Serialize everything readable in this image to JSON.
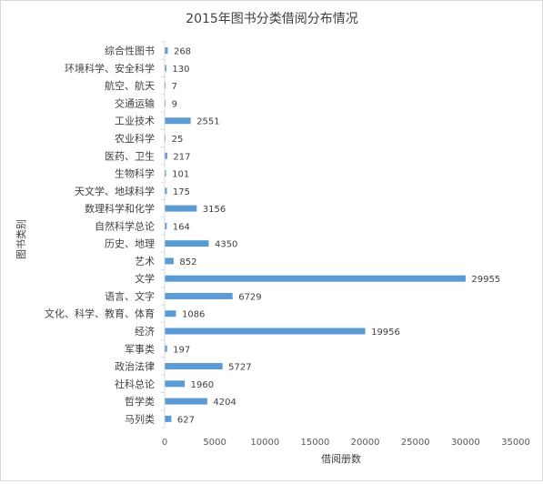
{
  "chart_data": {
    "type": "bar",
    "orientation": "horizontal",
    "title": "2015年图书分类借阅分布情况",
    "xlabel": "借阅册数",
    "ylabel": "图书类别",
    "xlim": [
      0,
      35000
    ],
    "xticks": [
      0,
      5000,
      10000,
      15000,
      20000,
      25000,
      30000,
      35000
    ],
    "grid": false,
    "legend": "none",
    "bar_color": "#5b9bd5",
    "categories": [
      "综合性图书",
      "环境科学、安全科学",
      "航空、航天",
      "交通运输",
      "工业技术",
      "农业科学",
      "医药、卫生",
      "生物科学",
      "天文学、地球科学",
      "数理科学和化学",
      "自然科学总论",
      "历史、地理",
      "艺术",
      "文学",
      "语言、文字",
      "文化、科学、教育、体育",
      "经济",
      "军事类",
      "政治法律",
      "社科总论",
      "哲学类",
      "马列类"
    ],
    "values": [
      268,
      130,
      7,
      9,
      2551,
      25,
      217,
      101,
      175,
      3156,
      164,
      4350,
      852,
      29955,
      6729,
      1086,
      19956,
      197,
      5727,
      1960,
      4204,
      627
    ]
  }
}
